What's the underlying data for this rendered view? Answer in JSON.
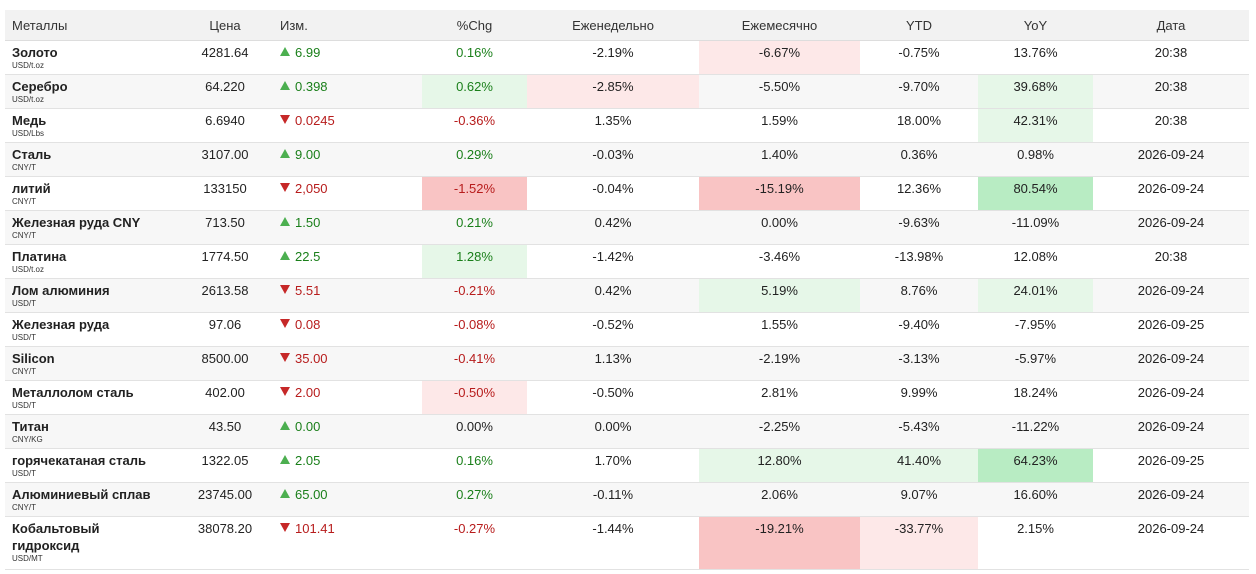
{
  "headers": {
    "name": "Металлы",
    "price": "Цена",
    "change": "Изм.",
    "pct": "%Chg",
    "weekly": "Еженедельно",
    "monthly": "Ежемесячно",
    "ytd": "YTD",
    "yoy": "YoY",
    "date": "Дата"
  },
  "colors": {
    "up_arrow": "#4caf50",
    "down_arrow": "#c62828",
    "positive_text": "#1a7f1a",
    "negative_text": "#b71c1c",
    "light_green": "#e6f7e8",
    "green": "#b8ecc3",
    "light_red": "#fde8e8",
    "red": "#f9c4c4"
  },
  "rows": [
    {
      "name": "Золото",
      "unit": "USD/t.oz",
      "price": "4281.64",
      "dir": "up",
      "change": "6.99",
      "pct": "0.16%",
      "weekly": "-2.19%",
      "monthly": "-6.67%",
      "ytd": "-0.75%",
      "yoy": "13.76%",
      "date": "20:38"
    },
    {
      "name": "Серебро",
      "unit": "USD/t.oz",
      "price": "64.220",
      "dir": "up",
      "change": "0.398",
      "pct": "0.62%",
      "weekly": "-2.85%",
      "monthly": "-5.50%",
      "ytd": "-9.70%",
      "yoy": "39.68%",
      "date": "20:38"
    },
    {
      "name": "Медь",
      "unit": "USD/Lbs",
      "price": "6.6940",
      "dir": "down",
      "change": "0.0245",
      "pct": "-0.36%",
      "weekly": "1.35%",
      "monthly": "1.59%",
      "ytd": "18.00%",
      "yoy": "42.31%",
      "date": "20:38"
    },
    {
      "name": "Сталь",
      "unit": "CNY/T",
      "price": "3107.00",
      "dir": "up",
      "change": "9.00",
      "pct": "0.29%",
      "weekly": "-0.03%",
      "monthly": "1.40%",
      "ytd": "0.36%",
      "yoy": "0.98%",
      "date": "2026-09-24"
    },
    {
      "name": "литий",
      "unit": "CNY/T",
      "price": "133150",
      "dir": "down",
      "change": "2,050",
      "pct": "-1.52%",
      "weekly": "-0.04%",
      "monthly": "-15.19%",
      "ytd": "12.36%",
      "yoy": "80.54%",
      "date": "2026-09-24"
    },
    {
      "name": "Железная руда CNY",
      "unit": "CNY/T",
      "price": "713.50",
      "dir": "up",
      "change": "1.50",
      "pct": "0.21%",
      "weekly": "0.42%",
      "monthly": "0.00%",
      "ytd": "-9.63%",
      "yoy": "-11.09%",
      "date": "2026-09-24"
    },
    {
      "name": "Платина",
      "unit": "USD/t.oz",
      "price": "1774.50",
      "dir": "up",
      "change": "22.5",
      "pct": "1.28%",
      "weekly": "-1.42%",
      "monthly": "-3.46%",
      "ytd": "-13.98%",
      "yoy": "12.08%",
      "date": "20:38"
    },
    {
      "name": "Лом алюминия",
      "unit": "USD/T",
      "price": "2613.58",
      "dir": "down",
      "change": "5.51",
      "pct": "-0.21%",
      "weekly": "0.42%",
      "monthly": "5.19%",
      "ytd": "8.76%",
      "yoy": "24.01%",
      "date": "2026-09-24"
    },
    {
      "name": "Железная руда",
      "unit": "USD/T",
      "price": "97.06",
      "dir": "down",
      "change": "0.08",
      "pct": "-0.08%",
      "weekly": "-0.52%",
      "monthly": "1.55%",
      "ytd": "-9.40%",
      "yoy": "-7.95%",
      "date": "2026-09-25"
    },
    {
      "name": "Silicon",
      "unit": "CNY/T",
      "price": "8500.00",
      "dir": "down",
      "change": "35.00",
      "pct": "-0.41%",
      "weekly": "1.13%",
      "monthly": "-2.19%",
      "ytd": "-3.13%",
      "yoy": "-5.97%",
      "date": "2026-09-24"
    },
    {
      "name": "Металлолом сталь",
      "unit": "USD/T",
      "price": "402.00",
      "dir": "down",
      "change": "2.00",
      "pct": "-0.50%",
      "weekly": "-0.50%",
      "monthly": "2.81%",
      "ytd": "9.99%",
      "yoy": "18.24%",
      "date": "2026-09-24"
    },
    {
      "name": "Титан",
      "unit": "CNY/KG",
      "price": "43.50",
      "dir": "up",
      "change": "0.00",
      "pct": "0.00%",
      "weekly": "0.00%",
      "monthly": "-2.25%",
      "ytd": "-5.43%",
      "yoy": "-11.22%",
      "date": "2026-09-24"
    },
    {
      "name": "горячекатаная сталь",
      "unit": "USD/T",
      "price": "1322.05",
      "dir": "up",
      "change": "2.05",
      "pct": "0.16%",
      "weekly": "1.70%",
      "monthly": "12.80%",
      "ytd": "41.40%",
      "yoy": "64.23%",
      "date": "2026-09-25"
    },
    {
      "name": "Алюминиевый сплав",
      "unit": "CNY/T",
      "price": "23745.00",
      "dir": "up",
      "change": "65.00",
      "pct": "0.27%",
      "weekly": "-0.11%",
      "monthly": "2.06%",
      "ytd": "9.07%",
      "yoy": "16.60%",
      "date": "2026-09-24"
    },
    {
      "name": "Кобальтовый гидроксид",
      "unit": "USD/MT",
      "price": "38078.20",
      "dir": "down",
      "change": "101.41",
      "pct": "-0.27%",
      "weekly": "-1.44%",
      "monthly": "-19.21%",
      "ytd": "-33.77%",
      "yoy": "2.15%",
      "date": "2026-09-24"
    }
  ]
}
